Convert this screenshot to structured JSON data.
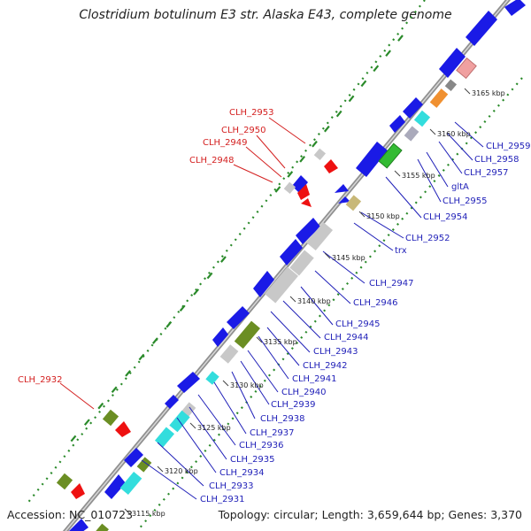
{
  "title": "Clostridium botulinum E3 str. Alaska E43, complete genome",
  "footer": {
    "accession": "Accession: NC_010723",
    "topology": "Topology: circular; Length: 3,659,644 bp; Genes: 3,370"
  },
  "ticks": [
    "3165 kbp",
    "3160 kbp",
    "3155 kbp",
    "3150 kbp",
    "3145 kbp",
    "3140 kbp",
    "3135 kbp",
    "3130 kbp",
    "3125 kbp",
    "3120 kbp",
    "3115 kbp"
  ],
  "labels_red": [
    "CLH_2953",
    "CLH_2950",
    "CLH_2949",
    "CLH_2948",
    "CLH_2932"
  ],
  "labels_blue": [
    "CLH_2959",
    "CLH_2958",
    "CLH_2957",
    "gltA",
    "CLH_2955",
    "CLH_2954",
    "CLH_2952",
    "trx",
    "CLH_2947",
    "CLH_2946",
    "CLH_2945",
    "CLH_2944",
    "CLH_2943",
    "CLH_2942",
    "CLH_2941",
    "CLH_2940",
    "CLH_2939",
    "CLH_2938",
    "CLH_2937",
    "CLH_2936",
    "CLH_2935",
    "CLH_2934",
    "CLH_2933",
    "CLH_2931"
  ],
  "colors": {
    "cds": "#1a1ae6",
    "gray": "#c8c8c8",
    "cyan": "#33dddd",
    "olive": "#6b8e23",
    "green": "#33bb33",
    "red": "#ee1111",
    "pink": "#f0a0a0",
    "orange": "#f09030",
    "tan": "#c8b878",
    "backbone": "#909090",
    "dots": "#2a8a2a"
  }
}
